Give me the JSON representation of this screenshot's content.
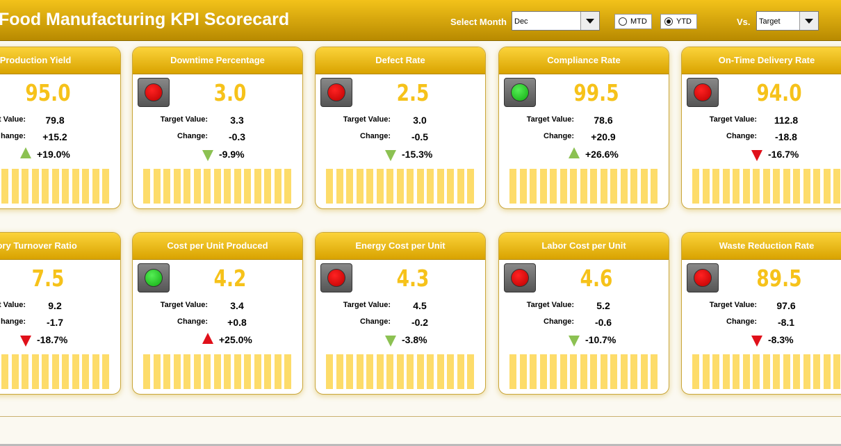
{
  "header": {
    "title": "Food Manufacturing KPI Scorecard",
    "month_label": "Select Month",
    "month": "Dec",
    "options": [
      "MTD",
      "YTD"
    ],
    "selected": "YTD",
    "vs_label": "Vs.",
    "vs": "Target"
  },
  "cards": [
    {
      "title": "Production Yield",
      "value": "95.0",
      "target_label": "arget Value:",
      "target": "79.8",
      "change_label": "hange:",
      "change": "+15.2",
      "pct": "+19.0%",
      "light": null,
      "arrow": "up",
      "arrow_color": "#8cc152"
    },
    {
      "title": "Downtime Percentage",
      "value": "3.0",
      "target_label": "Target Value:",
      "target": "3.3",
      "change_label": "Change:",
      "change": "-0.3",
      "pct": "-9.9%",
      "light": "red",
      "arrow": "down",
      "arrow_color": "#8cc152"
    },
    {
      "title": "Defect Rate",
      "value": "2.5",
      "target_label": "Target Value:",
      "target": "3.0",
      "change_label": "Change:",
      "change": "-0.5",
      "pct": "-15.3%",
      "light": "red",
      "arrow": "down",
      "arrow_color": "#8cc152"
    },
    {
      "title": "Compliance Rate",
      "value": "99.5",
      "target_label": "Target Value:",
      "target": "78.6",
      "change_label": "Change:",
      "change": "+20.9",
      "pct": "+26.6%",
      "light": "green",
      "arrow": "up",
      "arrow_color": "#8cc152"
    },
    {
      "title": "On-Time Delivery Rate",
      "value": "94.0",
      "target_label": "Target Value:",
      "target": "112.8",
      "change_label": "Change:",
      "change": "-18.8",
      "pct": "-16.7%",
      "light": "red",
      "arrow": "down",
      "arrow_color": "#e0101a"
    },
    {
      "title": "tory Turnover Ratio",
      "value": "7.5",
      "target_label": "et Value:",
      "target": "9.2",
      "change_label": "hange:",
      "change": "-1.7",
      "pct": "-18.7%",
      "light": null,
      "arrow": "down",
      "arrow_color": "#e0101a"
    },
    {
      "title": "Cost per Unit Produced",
      "value": "4.2",
      "target_label": "Target Value:",
      "target": "3.4",
      "change_label": "Change:",
      "change": "+0.8",
      "pct": "+25.0%",
      "light": "green",
      "arrow": "up",
      "arrow_color": "#e0101a"
    },
    {
      "title": "Energy Cost per Unit",
      "value": "4.3",
      "target_label": "Target Value:",
      "target": "4.5",
      "change_label": "Change:",
      "change": "-0.2",
      "pct": "-3.8%",
      "light": "red",
      "arrow": "down",
      "arrow_color": "#8cc152"
    },
    {
      "title": "Labor Cost per Unit",
      "value": "4.6",
      "target_label": "Target Value:",
      "target": "5.2",
      "change_label": "Change:",
      "change": "-0.6",
      "pct": "-10.7%",
      "light": "red",
      "arrow": "down",
      "arrow_color": "#8cc152"
    },
    {
      "title": "Waste Reduction Rate",
      "value": "89.5",
      "target_label": "Target Value:",
      "target": "97.6",
      "change_label": "Change:",
      "change": "-8.1",
      "pct": "-8.3%",
      "light": "red",
      "arrow": "down",
      "arrow_color": "#e0101a"
    }
  ]
}
